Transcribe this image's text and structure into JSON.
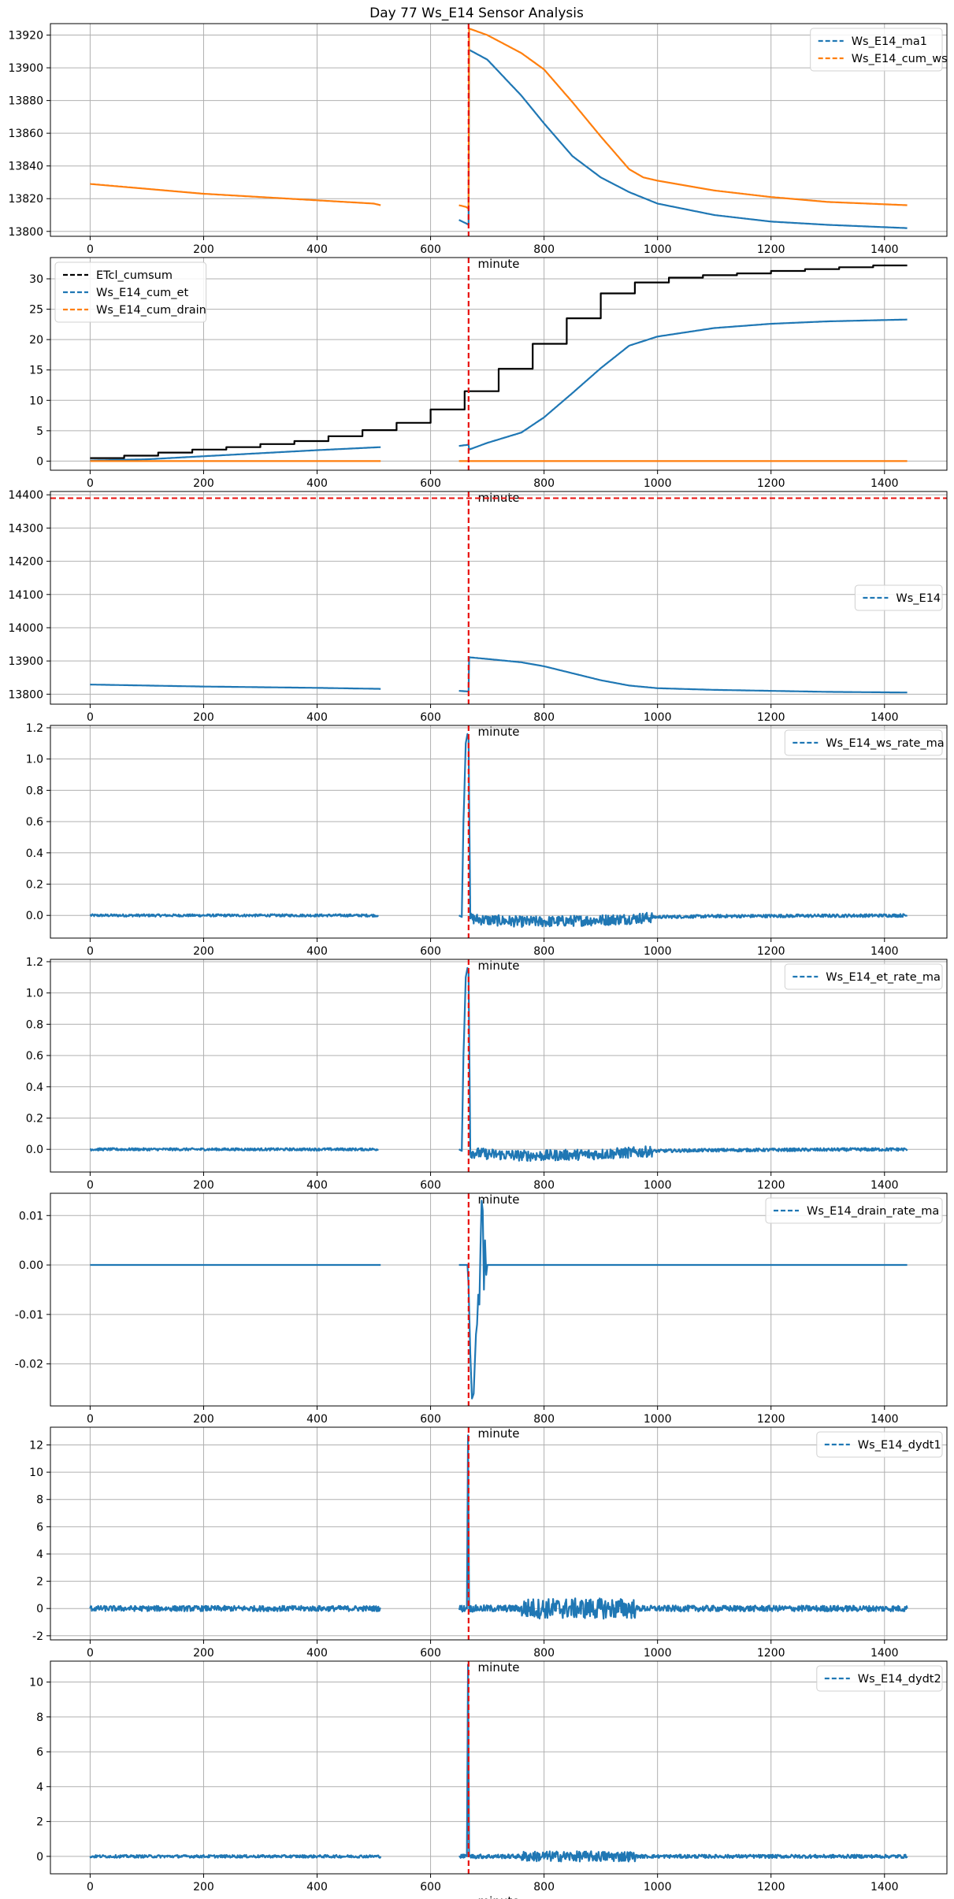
{
  "title": "Day 77 Ws_E14 Sensor Analysis",
  "colors": {
    "blue": "#1f77b4",
    "orange": "#ff7f0e",
    "black": "#000000",
    "red": "#e8110f",
    "grid": "#b0b0b0"
  },
  "chart_data": [
    {
      "type": "line",
      "xlabel": "minute",
      "xlim": [
        -70,
        1510
      ],
      "ylim": [
        13797,
        13927
      ],
      "xticks": [
        0,
        200,
        400,
        600,
        800,
        1000,
        1200,
        1400
      ],
      "yticks": [
        13800,
        13820,
        13840,
        13860,
        13880,
        13900,
        13920
      ],
      "ytick_labels": [
        "13800",
        "13820",
        "13840",
        "13860",
        "13880",
        "13900",
        "13920"
      ],
      "vline_x": 667,
      "legend_position": "top-right",
      "series": [
        {
          "name": "Ws_E14_ma1",
          "color": "blue",
          "points": [
            [
              650,
              13807
            ],
            [
              662,
              13805
            ],
            [
              667,
              13804
            ],
            [
              668,
              13911
            ],
            [
              700,
              13905
            ],
            [
              760,
              13883
            ],
            [
              800,
              13866
            ],
            [
              850,
              13846
            ],
            [
              900,
              13833
            ],
            [
              950,
              13824
            ],
            [
              1000,
              13817
            ],
            [
              1100,
              13810
            ],
            [
              1200,
              13806
            ],
            [
              1300,
              13804
            ],
            [
              1440,
              13802
            ]
          ]
        },
        {
          "name": "Ws_E14_cum_ws",
          "color": "orange",
          "points": [
            [
              0,
              13829
            ],
            [
              100,
              13826
            ],
            [
              200,
              13823
            ],
            [
              300,
              13821
            ],
            [
              400,
              13819
            ],
            [
              500,
              13817
            ],
            [
              512,
              13816
            ],
            [
              650,
              13816
            ],
            [
              662,
              13815
            ],
            [
              667,
              13814
            ],
            [
              668,
              13924
            ],
            [
              700,
              13920
            ],
            [
              760,
              13909
            ],
            [
              800,
              13899
            ],
            [
              850,
              13879
            ],
            [
              900,
              13858
            ],
            [
              950,
              13838
            ],
            [
              975,
              13833
            ],
            [
              1000,
              13831
            ],
            [
              1100,
              13825
            ],
            [
              1200,
              13821
            ],
            [
              1300,
              13818
            ],
            [
              1440,
              13816
            ]
          ]
        }
      ],
      "gaps": [
        [
          512,
          650
        ]
      ]
    },
    {
      "type": "line",
      "xlabel": "minute",
      "xlim": [
        -70,
        1510
      ],
      "ylim": [
        -1.5,
        33.5
      ],
      "xticks": [
        0,
        200,
        400,
        600,
        800,
        1000,
        1200,
        1400
      ],
      "yticks": [
        0,
        5,
        10,
        15,
        20,
        25,
        30
      ],
      "ytick_labels": [
        "0",
        "5",
        "10",
        "15",
        "20",
        "25",
        "30"
      ],
      "vline_x": 667,
      "legend_position": "top-left",
      "series": [
        {
          "name": "ETcl_cumsum",
          "color": "black",
          "step": true,
          "step_edges": [
            0,
            60,
            120,
            180,
            240,
            300,
            360,
            420,
            480,
            540,
            600,
            660,
            720,
            780,
            840,
            900,
            960,
            1020,
            1080,
            1140,
            1200,
            1260,
            1320,
            1380,
            1440
          ],
          "step_values": [
            0.5,
            0.9,
            1.4,
            1.9,
            2.3,
            2.8,
            3.3,
            4.1,
            5.1,
            6.3,
            8.5,
            11.5,
            15.2,
            19.3,
            23.5,
            27.6,
            29.4,
            30.2,
            30.6,
            30.9,
            31.3,
            31.6,
            31.9,
            32.2
          ]
        },
        {
          "name": "Ws_E14_cum_et",
          "color": "blue",
          "points": [
            [
              0,
              0.1
            ],
            [
              100,
              0.3
            ],
            [
              200,
              0.8
            ],
            [
              300,
              1.3
            ],
            [
              400,
              1.8
            ],
            [
              512,
              2.3
            ],
            [
              650,
              2.5
            ],
            [
              667,
              2.7
            ],
            [
              668,
              1.9
            ],
            [
              700,
              3.0
            ],
            [
              760,
              4.7
            ],
            [
              800,
              7.2
            ],
            [
              850,
              11.2
            ],
            [
              900,
              15.3
            ],
            [
              950,
              19.0
            ],
            [
              1000,
              20.5
            ],
            [
              1100,
              21.9
            ],
            [
              1200,
              22.6
            ],
            [
              1300,
              23.0
            ],
            [
              1440,
              23.3
            ]
          ]
        },
        {
          "name": "Ws_E14_cum_drain",
          "color": "orange",
          "points": [
            [
              0,
              0
            ],
            [
              512,
              0
            ],
            [
              650,
              0
            ],
            [
              1440,
              0
            ]
          ]
        }
      ],
      "gaps": [
        [
          512,
          650
        ]
      ]
    },
    {
      "type": "line",
      "xlabel": "minute",
      "xlim": [
        -70,
        1510
      ],
      "ylim": [
        13770,
        14410
      ],
      "xticks": [
        0,
        200,
        400,
        600,
        800,
        1000,
        1200,
        1400
      ],
      "yticks": [
        13800,
        13900,
        14000,
        14100,
        14200,
        14300,
        14400
      ],
      "ytick_labels": [
        "13800",
        "13900",
        "14000",
        "14100",
        "14200",
        "14300",
        "14400"
      ],
      "vline_x": 667,
      "hline_y": 14390,
      "legend_position": "center-right",
      "series": [
        {
          "name": "Ws_E14",
          "color": "blue",
          "points": [
            [
              0,
              13829
            ],
            [
              100,
              13826
            ],
            [
              200,
              13823
            ],
            [
              300,
              13821
            ],
            [
              400,
              13819
            ],
            [
              512,
              13816
            ],
            [
              650,
              13810
            ],
            [
              667,
              13808
            ],
            [
              668,
              13911
            ],
            [
              700,
              13906
            ],
            [
              760,
              13896
            ],
            [
              800,
              13884
            ],
            [
              850,
              13863
            ],
            [
              900,
              13842
            ],
            [
              950,
              13826
            ],
            [
              1000,
              13818
            ],
            [
              1100,
              13813
            ],
            [
              1200,
              13810
            ],
            [
              1300,
              13807
            ],
            [
              1440,
              13805
            ]
          ]
        }
      ],
      "gaps": [
        [
          512,
          650
        ]
      ]
    },
    {
      "type": "line",
      "xlabel": "minute",
      "xlim": [
        -70,
        1510
      ],
      "ylim": [
        -0.145,
        1.215
      ],
      "xticks": [
        0,
        200,
        400,
        600,
        800,
        1000,
        1200,
        1400
      ],
      "yticks": [
        0.0,
        0.2,
        0.4,
        0.6,
        0.8,
        1.0,
        1.2
      ],
      "ytick_labels": [
        "0.0",
        "0.2",
        "0.4",
        "0.6",
        "0.8",
        "1.0",
        "1.2"
      ],
      "vline_x": 667,
      "legend_position": "top-right",
      "series": [
        {
          "name": "Ws_E14_ws_rate_ma",
          "color": "blue",
          "noise": true,
          "points": [
            [
              0,
              0
            ],
            [
              508,
              0
            ],
            [
              650,
              0
            ],
            [
              655,
              -0.01
            ],
            [
              658,
              0.6
            ],
            [
              662,
              1.1
            ],
            [
              665,
              1.16
            ],
            [
              667,
              1.13
            ],
            [
              670,
              -0.02
            ],
            [
              700,
              -0.03
            ],
            [
              760,
              -0.04
            ],
            [
              800,
              -0.04
            ],
            [
              900,
              -0.03
            ],
            [
              960,
              -0.02
            ],
            [
              1000,
              -0.01
            ],
            [
              1100,
              -0.005
            ],
            [
              1440,
              0
            ]
          ]
        }
      ],
      "noise_ranges": [
        [
          0,
          508,
          0.008
        ],
        [
          670,
          990,
          0.035
        ],
        [
          990,
          1440,
          0.01
        ]
      ],
      "gaps": [
        [
          508,
          650
        ]
      ]
    },
    {
      "type": "line",
      "xlabel": "minute",
      "xlim": [
        -70,
        1510
      ],
      "ylim": [
        -0.145,
        1.215
      ],
      "xticks": [
        0,
        200,
        400,
        600,
        800,
        1000,
        1200,
        1400
      ],
      "yticks": [
        0.0,
        0.2,
        0.4,
        0.6,
        0.8,
        1.0,
        1.2
      ],
      "ytick_labels": [
        "0.0",
        "0.2",
        "0.4",
        "0.6",
        "0.8",
        "1.0",
        "1.2"
      ],
      "vline_x": 667,
      "legend_position": "top-right",
      "series": [
        {
          "name": "Ws_E14_et_rate_ma",
          "color": "blue",
          "noise": true,
          "points": [
            [
              0,
              0
            ],
            [
              508,
              0
            ],
            [
              650,
              0
            ],
            [
              655,
              -0.01
            ],
            [
              658,
              0.6
            ],
            [
              662,
              1.1
            ],
            [
              665,
              1.16
            ],
            [
              667,
              1.13
            ],
            [
              670,
              -0.02
            ],
            [
              700,
              -0.03
            ],
            [
              760,
              -0.04
            ],
            [
              800,
              -0.04
            ],
            [
              900,
              -0.03
            ],
            [
              960,
              -0.02
            ],
            [
              1000,
              -0.01
            ],
            [
              1100,
              -0.005
            ],
            [
              1440,
              0
            ]
          ]
        }
      ],
      "noise_ranges": [
        [
          0,
          508,
          0.008
        ],
        [
          670,
          990,
          0.035
        ],
        [
          990,
          1440,
          0.01
        ]
      ],
      "gaps": [
        [
          508,
          650
        ]
      ]
    },
    {
      "type": "line",
      "xlabel": "minute",
      "xlim": [
        -70,
        1510
      ],
      "ylim": [
        -0.0285,
        0.0145
      ],
      "xticks": [
        0,
        200,
        400,
        600,
        800,
        1000,
        1200,
        1400
      ],
      "yticks": [
        -0.02,
        -0.01,
        0.0,
        0.01
      ],
      "ytick_labels": [
        "-0.02",
        "-0.01",
        "0.00",
        "0.01"
      ],
      "vline_x": 667,
      "legend_position": "top-right",
      "series": [
        {
          "name": "Ws_E14_drain_rate_ma",
          "color": "blue",
          "points": [
            [
              0,
              0
            ],
            [
              512,
              0
            ],
            [
              650,
              0
            ],
            [
              665,
              0
            ],
            [
              667,
              -0.004
            ],
            [
              670,
              -0.018
            ],
            [
              673,
              -0.027
            ],
            [
              676,
              -0.026
            ],
            [
              678,
              -0.02
            ],
            [
              680,
              -0.014
            ],
            [
              682,
              -0.012
            ],
            [
              684,
              -0.006
            ],
            [
              686,
              -0.008
            ],
            [
              688,
              0.004
            ],
            [
              690,
              0.013
            ],
            [
              692,
              0.011
            ],
            [
              694,
              -0.005
            ],
            [
              696,
              0.005
            ],
            [
              698,
              -0.002
            ],
            [
              700,
              0
            ],
            [
              1440,
              0
            ]
          ]
        }
      ],
      "gaps": [
        [
          512,
          650
        ]
      ]
    },
    {
      "type": "line",
      "xlabel": "minute",
      "xlim": [
        -70,
        1510
      ],
      "ylim": [
        -2.3,
        13.3
      ],
      "xticks": [
        0,
        200,
        400,
        600,
        800,
        1000,
        1200,
        1400
      ],
      "yticks": [
        -2,
        0,
        2,
        4,
        6,
        8,
        10,
        12
      ],
      "ytick_labels": [
        "-2",
        "0",
        "2",
        "4",
        "6",
        "8",
        "10",
        "12"
      ],
      "vline_x": 667,
      "legend_position": "top-right",
      "series": [
        {
          "name": "Ws_E14_dydt1",
          "color": "blue",
          "noise": true,
          "points": [
            [
              0,
              0
            ],
            [
              512,
              0
            ],
            [
              650,
              0
            ],
            [
              664,
              0
            ],
            [
              666,
              12.7
            ],
            [
              668,
              0
            ],
            [
              1440,
              0
            ]
          ]
        }
      ],
      "noise_ranges": [
        [
          0,
          512,
          0.2
        ],
        [
          650,
          760,
          0.25
        ],
        [
          760,
          960,
          0.75
        ],
        [
          960,
          1440,
          0.22
        ]
      ],
      "gaps": [
        [
          512,
          650
        ]
      ]
    },
    {
      "type": "line",
      "xlabel": "minute",
      "xlim": [
        -70,
        1510
      ],
      "ylim": [
        -1.0,
        11.2
      ],
      "xticks": [
        0,
        200,
        400,
        600,
        800,
        1000,
        1200,
        1400
      ],
      "yticks": [
        0,
        2,
        4,
        6,
        8,
        10
      ],
      "ytick_labels": [
        "0",
        "2",
        "4",
        "6",
        "8",
        "10"
      ],
      "vline_x": 667,
      "legend_position": "top-right",
      "series": [
        {
          "name": "Ws_E14_dydt2",
          "color": "blue",
          "noise": true,
          "points": [
            [
              0,
              0
            ],
            [
              512,
              0
            ],
            [
              650,
              0
            ],
            [
              664,
              0
            ],
            [
              666,
              11.0
            ],
            [
              668,
              0
            ],
            [
              1440,
              0
            ]
          ]
        }
      ],
      "noise_ranges": [
        [
          0,
          512,
          0.08
        ],
        [
          650,
          760,
          0.12
        ],
        [
          760,
          960,
          0.3
        ],
        [
          960,
          1440,
          0.1
        ]
      ],
      "gaps": [
        [
          512,
          650
        ]
      ]
    }
  ]
}
